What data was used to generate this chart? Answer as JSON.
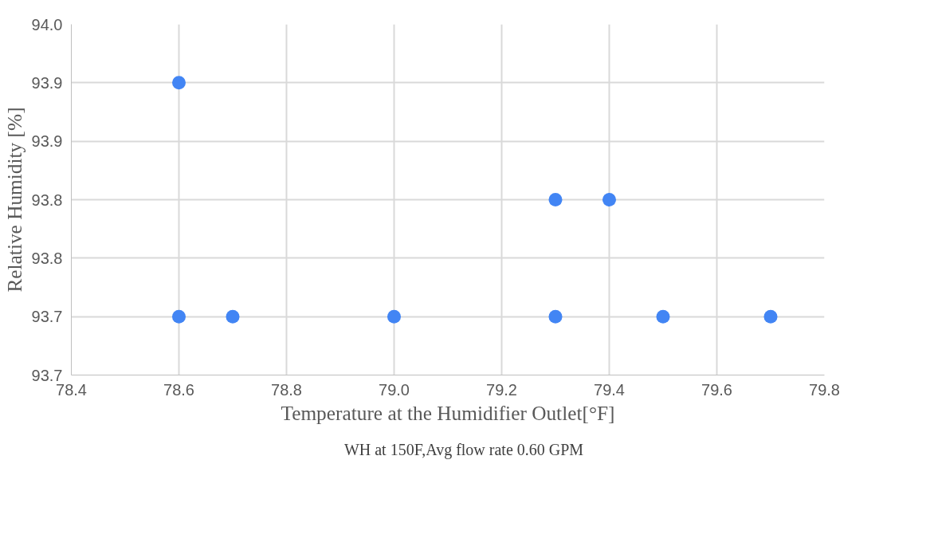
{
  "chart_data": {
    "type": "scatter",
    "xlabel": "Temperature at the Humidifier Outlet[°F]",
    "ylabel": "Relative Humidity [%]",
    "xlim": [
      78.4,
      79.8
    ],
    "xticks": [
      {
        "value": 78.4,
        "label": "78.4"
      },
      {
        "value": 78.6,
        "label": "78.6"
      },
      {
        "value": 78.8,
        "label": "78.8"
      },
      {
        "value": 79.0,
        "label": "79.0"
      },
      {
        "value": 79.2,
        "label": "79.2"
      },
      {
        "value": 79.4,
        "label": "79.4"
      },
      {
        "value": 79.6,
        "label": "79.6"
      },
      {
        "value": 79.8,
        "label": "79.8"
      }
    ],
    "ylim": [
      93.65,
      93.95
    ],
    "yticks": [
      {
        "value": 93.65,
        "label": "93.7"
      },
      {
        "value": 93.7,
        "label": "93.7"
      },
      {
        "value": 93.75,
        "label": "93.8"
      },
      {
        "value": 93.8,
        "label": "93.8"
      },
      {
        "value": 93.85,
        "label": "93.9"
      },
      {
        "value": 93.9,
        "label": "93.9"
      },
      {
        "value": 93.95,
        "label": "94.0"
      }
    ],
    "series": [
      {
        "name": "WH at 150F,Avg flow rate 0.60 GPM",
        "color": "#4285f4",
        "x": [
          78.6,
          78.6,
          78.7,
          79.0,
          79.3,
          79.3,
          79.4,
          79.5,
          79.7
        ],
        "values": [
          93.9,
          93.7,
          93.7,
          93.7,
          93.8,
          93.7,
          93.8,
          93.7,
          93.7
        ]
      }
    ],
    "grid": true,
    "legend": "bottom",
    "marker": "circle"
  }
}
